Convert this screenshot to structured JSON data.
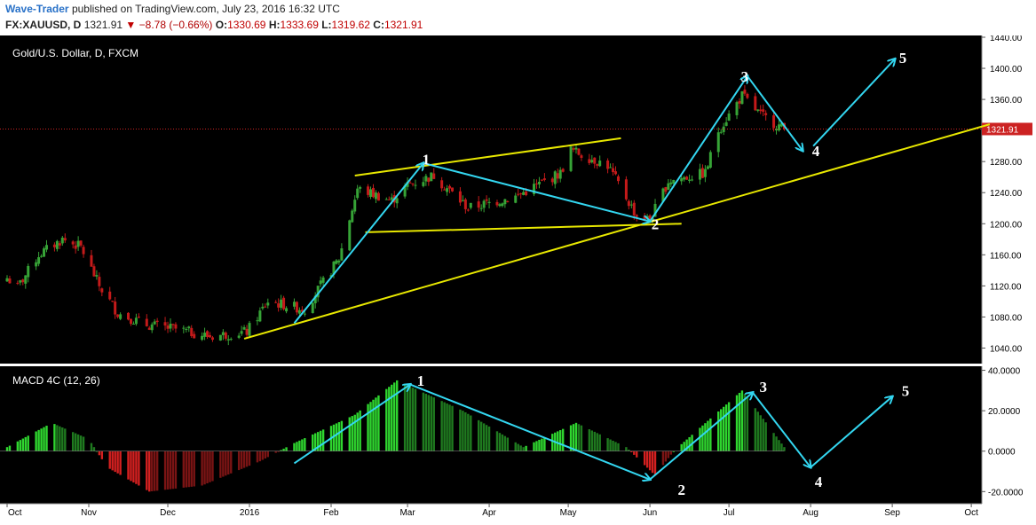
{
  "header": {
    "author": "Wave-Trader",
    "published_text": "published on TradingView.com, July 23, 2016 16:32 UTC",
    "symbol": "FX:XAUUSD, D",
    "last": "1321.91",
    "change": "−8.78 (−0.66%)",
    "o_label": "O:",
    "o_value": "1330.69",
    "h_label": "H:",
    "h_value": "1333.69",
    "l_label": "L:",
    "l_value": "1319.62",
    "c_label": "C:",
    "c_value": "1321.91"
  },
  "colors": {
    "up_candle": "#36a336",
    "down_candle": "#c41a1a",
    "trendline": "#e8e800",
    "wave_arrow": "#33d6f0",
    "price_line": "#cc2222"
  },
  "chart_data": [
    {
      "type": "candlestick",
      "title": "Gold/U.S. Dollar, D, FXCM",
      "ylim": [
        1020,
        1440
      ],
      "y_ticks": [
        "1440.00",
        "1400.00",
        "1360.00",
        "1320.00",
        "1280.00",
        "1240.00",
        "1200.00",
        "1160.00",
        "1120.00",
        "1080.00",
        "1040.00"
      ],
      "x_ticks": [
        "Oct",
        "Nov",
        "Dec",
        "2016",
        "Feb",
        "Mar",
        "Apr",
        "May",
        "Jun",
        "Jul",
        "Aug",
        "Sep",
        "Oct"
      ],
      "last_price_label": "1321.91",
      "close_path": [
        {
          "date": "2015-10-01",
          "close": 1130
        },
        {
          "date": "2015-10-05",
          "close": 1118
        },
        {
          "date": "2015-10-13",
          "close": 1160
        },
        {
          "date": "2015-10-22",
          "close": 1180
        },
        {
          "date": "2015-10-29",
          "close": 1170
        },
        {
          "date": "2015-11-05",
          "close": 1120
        },
        {
          "date": "2015-11-12",
          "close": 1085
        },
        {
          "date": "2015-11-23",
          "close": 1070
        },
        {
          "date": "2015-12-03",
          "close": 1065
        },
        {
          "date": "2015-12-17",
          "close": 1055
        },
        {
          "date": "2015-12-31",
          "close": 1061
        },
        {
          "date": "2016-01-08",
          "close": 1100
        },
        {
          "date": "2016-01-22",
          "close": 1090
        },
        {
          "date": "2016-02-04",
          "close": 1155
        },
        {
          "date": "2016-02-11",
          "close": 1245
        },
        {
          "date": "2016-02-24",
          "close": 1230
        },
        {
          "date": "2016-03-01",
          "close": 1250
        },
        {
          "date": "2016-03-11",
          "close": 1262
        },
        {
          "date": "2016-03-24",
          "close": 1220
        },
        {
          "date": "2016-04-11",
          "close": 1235
        },
        {
          "date": "2016-04-28",
          "close": 1265
        },
        {
          "date": "2016-05-02",
          "close": 1295
        },
        {
          "date": "2016-05-16",
          "close": 1275
        },
        {
          "date": "2016-05-27",
          "close": 1210
        },
        {
          "date": "2016-06-01",
          "close": 1205
        },
        {
          "date": "2016-06-08",
          "close": 1255
        },
        {
          "date": "2016-06-22",
          "close": 1265
        },
        {
          "date": "2016-06-27",
          "close": 1320
        },
        {
          "date": "2016-07-06",
          "close": 1365
        },
        {
          "date": "2016-07-13",
          "close": 1340
        },
        {
          "date": "2016-07-22",
          "close": 1321.91
        }
      ],
      "wave_labels": [
        {
          "label": "1",
          "date": "2016-03-08",
          "value": 1283
        },
        {
          "label": "2",
          "date": "2016-06-03",
          "value": 1200
        },
        {
          "label": "3",
          "date": "2016-07-07",
          "value": 1390
        },
        {
          "label": "4",
          "date": "2016-08-03",
          "value": 1294
        },
        {
          "label": "5",
          "date": "2016-09-05",
          "value": 1414
        }
      ],
      "support_lines": [
        {
          "from": {
            "date": "2015-12-30",
            "value": 1052
          },
          "to": {
            "date": "2016-10-08",
            "value": 1328
          }
        },
        {
          "from": {
            "date": "2016-02-10",
            "value": 1262
          },
          "to": {
            "date": "2016-05-21",
            "value": 1310
          }
        },
        {
          "from": {
            "date": "2016-02-14",
            "value": 1189
          },
          "to": {
            "date": "2016-06-13",
            "value": 1200
          }
        }
      ]
    },
    {
      "type": "bar",
      "title": "MACD 4C (12, 26)",
      "ylim": [
        -26,
        42
      ],
      "y_ticks": [
        "40.0000",
        "20.0000",
        "0.0000",
        "-20.0000"
      ],
      "series": [
        {
          "values_path": [
            {
              "date": "2015-10-01",
              "value": 2
            },
            {
              "date": "2015-10-18",
              "value": 14
            },
            {
              "date": "2015-11-01",
              "value": 6
            },
            {
              "date": "2015-11-08",
              "value": -8
            },
            {
              "date": "2015-11-24",
              "value": -20
            },
            {
              "date": "2015-12-14",
              "value": -17
            },
            {
              "date": "2016-01-05",
              "value": -5
            },
            {
              "date": "2016-01-18",
              "value": 4
            },
            {
              "date": "2016-02-10",
              "value": 18
            },
            {
              "date": "2016-02-26",
              "value": 35
            },
            {
              "date": "2016-03-22",
              "value": 20
            },
            {
              "date": "2016-04-14",
              "value": 2
            },
            {
              "date": "2016-05-04",
              "value": 14
            },
            {
              "date": "2016-05-23",
              "value": 2
            },
            {
              "date": "2016-06-03",
              "value": -12
            },
            {
              "date": "2016-06-10",
              "value": 0
            },
            {
              "date": "2016-07-06",
              "value": 30
            },
            {
              "date": "2016-07-22",
              "value": 2
            }
          ]
        }
      ],
      "wave_labels": [
        {
          "label": "1",
          "date": "2016-03-06",
          "value": 35
        },
        {
          "label": "2",
          "date": "2016-06-13",
          "value": -19
        },
        {
          "label": "3",
          "date": "2016-07-14",
          "value": 32
        },
        {
          "label": "4",
          "date": "2016-08-04",
          "value": -15
        },
        {
          "label": "5",
          "date": "2016-09-06",
          "value": 30
        }
      ]
    }
  ]
}
